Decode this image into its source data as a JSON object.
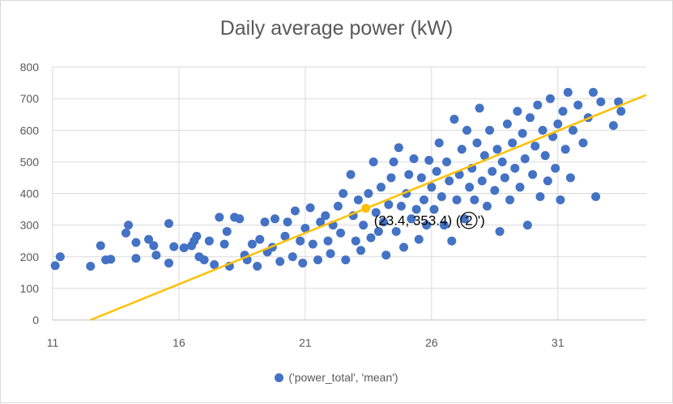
{
  "chart_data": {
    "type": "scatter",
    "title": "Daily average power (kW)",
    "xlabel": "",
    "ylabel": "",
    "xlim": [
      11,
      34.5
    ],
    "ylim": [
      0,
      800
    ],
    "xticks": [
      11,
      16,
      21,
      26,
      31
    ],
    "yticks": [
      0,
      100,
      200,
      300,
      400,
      500,
      600,
      700,
      800
    ],
    "grid": true,
    "legend_position": "bottom",
    "series": [
      {
        "name": "('power_total', 'mean')",
        "color": "#4472c4",
        "points": [
          [
            11.1,
            172
          ],
          [
            11.3,
            200
          ],
          [
            12.5,
            170
          ],
          [
            12.9,
            235
          ],
          [
            13.1,
            190
          ],
          [
            13.3,
            192
          ],
          [
            13.9,
            275
          ],
          [
            14.0,
            300
          ],
          [
            14.3,
            245
          ],
          [
            14.3,
            195
          ],
          [
            14.8,
            255
          ],
          [
            15.0,
            235
          ],
          [
            15.1,
            205
          ],
          [
            15.6,
            305
          ],
          [
            15.6,
            180
          ],
          [
            15.8,
            232
          ],
          [
            16.2,
            228
          ],
          [
            16.5,
            235
          ],
          [
            16.6,
            250
          ],
          [
            16.7,
            265
          ],
          [
            16.8,
            200
          ],
          [
            17.0,
            190
          ],
          [
            17.2,
            250
          ],
          [
            17.4,
            175
          ],
          [
            17.6,
            325
          ],
          [
            17.8,
            240
          ],
          [
            17.9,
            280
          ],
          [
            18.0,
            170
          ],
          [
            18.2,
            325
          ],
          [
            18.4,
            320
          ],
          [
            18.6,
            205
          ],
          [
            18.7,
            190
          ],
          [
            18.9,
            240
          ],
          [
            19.1,
            170
          ],
          [
            19.2,
            255
          ],
          [
            19.4,
            310
          ],
          [
            19.5,
            215
          ],
          [
            19.7,
            230
          ],
          [
            19.8,
            320
          ],
          [
            20.0,
            185
          ],
          [
            20.2,
            265
          ],
          [
            20.3,
            310
          ],
          [
            20.5,
            200
          ],
          [
            20.6,
            345
          ],
          [
            20.8,
            250
          ],
          [
            20.9,
            180
          ],
          [
            21.0,
            290
          ],
          [
            21.2,
            355
          ],
          [
            21.3,
            240
          ],
          [
            21.5,
            190
          ],
          [
            21.6,
            310
          ],
          [
            21.8,
            330
          ],
          [
            21.9,
            250
          ],
          [
            22.0,
            210
          ],
          [
            22.1,
            300
          ],
          [
            22.3,
            360
          ],
          [
            22.4,
            275
          ],
          [
            22.5,
            400
          ],
          [
            22.6,
            190
          ],
          [
            22.8,
            460
          ],
          [
            22.9,
            330
          ],
          [
            23.0,
            250
          ],
          [
            23.1,
            380
          ],
          [
            23.2,
            220
          ],
          [
            23.3,
            300
          ],
          [
            23.5,
            400
          ],
          [
            23.6,
            260
          ],
          [
            23.7,
            500
          ],
          [
            23.8,
            340
          ],
          [
            23.9,
            280
          ],
          [
            24.0,
            420
          ],
          [
            24.1,
            310
          ],
          [
            24.2,
            205
          ],
          [
            24.3,
            365
          ],
          [
            24.4,
            450
          ],
          [
            24.5,
            500
          ],
          [
            24.6,
            280
          ],
          [
            24.7,
            545
          ],
          [
            24.8,
            360
          ],
          [
            24.9,
            230
          ],
          [
            25.0,
            400
          ],
          [
            25.1,
            460
          ],
          [
            25.2,
            320
          ],
          [
            25.3,
            510
          ],
          [
            25.4,
            350
          ],
          [
            25.5,
            255
          ],
          [
            25.6,
            450
          ],
          [
            25.7,
            380
          ],
          [
            25.8,
            300
          ],
          [
            25.9,
            505
          ],
          [
            26.0,
            420
          ],
          [
            26.1,
            350
          ],
          [
            26.2,
            470
          ],
          [
            26.3,
            560
          ],
          [
            26.4,
            390
          ],
          [
            26.5,
            300
          ],
          [
            26.6,
            500
          ],
          [
            26.7,
            440
          ],
          [
            26.8,
            250
          ],
          [
            26.9,
            635
          ],
          [
            27.0,
            380
          ],
          [
            27.1,
            460
          ],
          [
            27.2,
            540
          ],
          [
            27.3,
            320
          ],
          [
            27.4,
            600
          ],
          [
            27.5,
            420
          ],
          [
            27.6,
            480
          ],
          [
            27.7,
            380
          ],
          [
            27.8,
            560
          ],
          [
            27.9,
            670
          ],
          [
            28.0,
            440
          ],
          [
            28.1,
            520
          ],
          [
            28.2,
            360
          ],
          [
            28.3,
            600
          ],
          [
            28.4,
            470
          ],
          [
            28.5,
            410
          ],
          [
            28.6,
            540
          ],
          [
            28.7,
            280
          ],
          [
            28.8,
            500
          ],
          [
            28.9,
            450
          ],
          [
            29.0,
            620
          ],
          [
            29.1,
            380
          ],
          [
            29.2,
            560
          ],
          [
            29.3,
            480
          ],
          [
            29.4,
            660
          ],
          [
            29.5,
            420
          ],
          [
            29.6,
            590
          ],
          [
            29.7,
            510
          ],
          [
            29.8,
            300
          ],
          [
            29.9,
            640
          ],
          [
            30.0,
            460
          ],
          [
            30.1,
            550
          ],
          [
            30.2,
            680
          ],
          [
            30.3,
            390
          ],
          [
            30.4,
            600
          ],
          [
            30.5,
            520
          ],
          [
            30.6,
            440
          ],
          [
            30.7,
            700
          ],
          [
            30.8,
            580
          ],
          [
            30.9,
            480
          ],
          [
            31.0,
            620
          ],
          [
            31.1,
            380
          ],
          [
            31.2,
            660
          ],
          [
            31.3,
            540
          ],
          [
            31.4,
            720
          ],
          [
            31.5,
            450
          ],
          [
            31.6,
            600
          ],
          [
            31.8,
            680
          ],
          [
            32.0,
            560
          ],
          [
            32.2,
            640
          ],
          [
            32.4,
            720
          ],
          [
            32.5,
            390
          ],
          [
            32.7,
            690
          ],
          [
            33.2,
            615
          ],
          [
            33.4,
            690
          ],
          [
            33.5,
            660
          ]
        ]
      }
    ],
    "trendline": {
      "color": "#ffc000",
      "from": [
        12.5,
        0
      ],
      "to": [
        34.5,
        712
      ]
    },
    "highlight": {
      "x": 23.4,
      "y": 353.4,
      "label": "(23.4, 353.4) (",
      "circled": "2",
      "label_end": "')"
    }
  }
}
